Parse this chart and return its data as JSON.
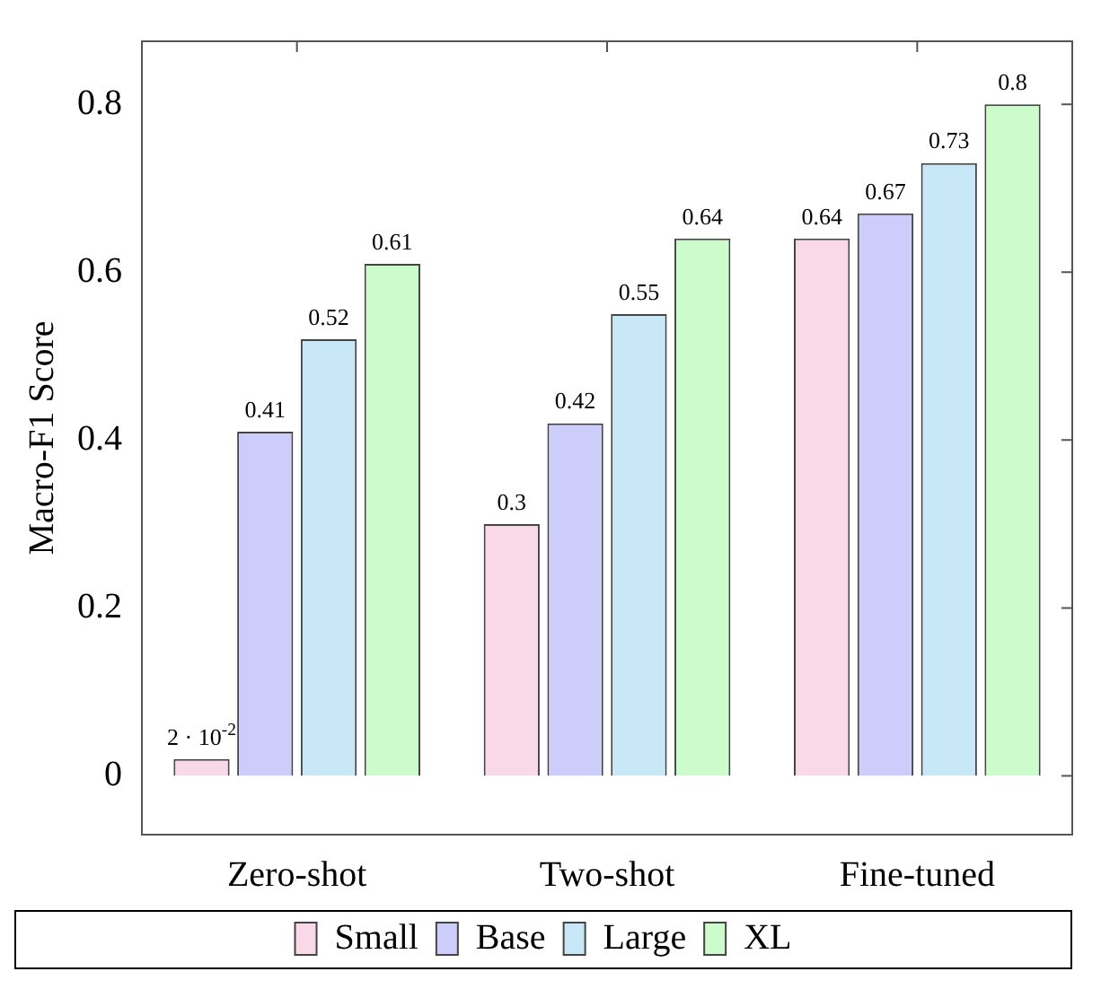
{
  "chart_data": {
    "type": "bar",
    "ylabel": "Macro-F1 Score",
    "categories": [
      "Zero-shot",
      "Two-shot",
      "Fine-tuned"
    ],
    "series": [
      {
        "name": "Small",
        "color": "#f9d9e8",
        "values": [
          0.02,
          0.3,
          0.64
        ],
        "value_labels": [
          "2 · 10$^{-2}$",
          "0.3",
          "0.64"
        ]
      },
      {
        "name": "Base",
        "color": "#cccdfa",
        "values": [
          0.41,
          0.42,
          0.67
        ],
        "value_labels": [
          "0.41",
          "0.42",
          "0.67"
        ]
      },
      {
        "name": "Large",
        "color": "#c8e8f8",
        "values": [
          0.52,
          0.55,
          0.73
        ],
        "value_labels": [
          "0.52",
          "0.55",
          "0.73"
        ]
      },
      {
        "name": "XL",
        "color": "#ccfccc",
        "values": [
          0.61,
          0.64,
          0.8
        ],
        "value_labels": [
          "0.61",
          "0.64",
          "0.8"
        ]
      }
    ],
    "ylim": [
      -0.07,
      0.875
    ],
    "yticks": [
      0,
      0.2,
      0.4,
      0.6,
      0.8
    ],
    "grid": false,
    "legend": "bottom"
  }
}
